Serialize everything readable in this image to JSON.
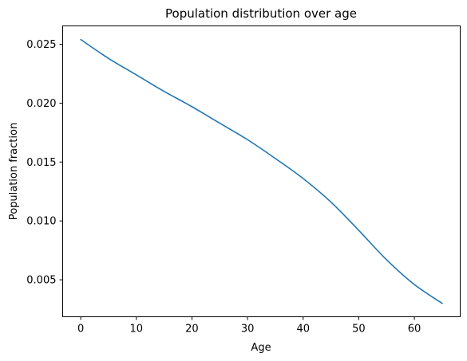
{
  "chart_data": {
    "type": "line",
    "title": "Population distribution over age",
    "xlabel": "Age",
    "ylabel": "Population fraction",
    "xlim": [
      -3.25,
      68.25
    ],
    "ylim": [
      0.00186,
      0.02656
    ],
    "xticks": [
      0,
      10,
      20,
      30,
      40,
      50,
      60
    ],
    "yticks": [
      0.005,
      0.01,
      0.015,
      0.02,
      0.025
    ],
    "ytick_labels": [
      "0.005",
      "0.010",
      "0.015",
      "0.020",
      "0.025"
    ],
    "grid": false,
    "color": "#1f77b4",
    "series": [
      {
        "x": [
          0,
          5,
          10,
          15,
          20,
          25,
          30,
          35,
          40,
          45,
          50,
          55,
          60,
          65
        ],
        "y": [
          0.0254,
          0.0238,
          0.0224,
          0.021,
          0.0197,
          0.0183,
          0.0169,
          0.0153,
          0.0136,
          0.0116,
          0.0092,
          0.0067,
          0.0046,
          0.003
        ]
      }
    ]
  }
}
